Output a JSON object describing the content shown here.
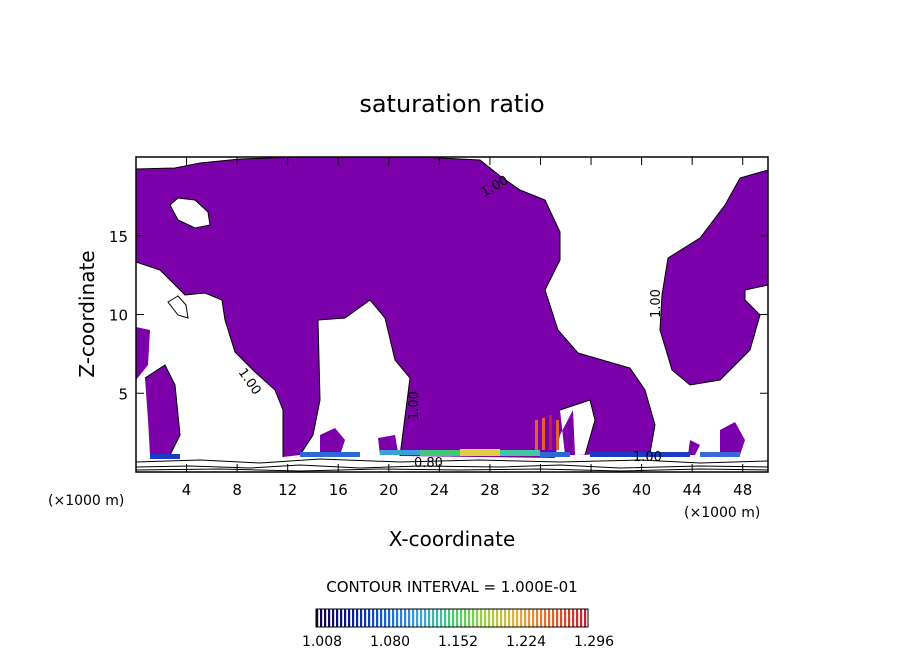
{
  "chart_data": {
    "type": "heatmap",
    "title": "saturation ratio",
    "xlabel": "X-coordinate",
    "ylabel": "Z-coordinate",
    "x_unit": "(×1000 m)",
    "z_unit": "(×1000 m)",
    "xlim": [
      0,
      50
    ],
    "ylim": [
      0,
      20
    ],
    "x_ticks": [
      4,
      8,
      12,
      16,
      20,
      24,
      28,
      32,
      36,
      40,
      44,
      48
    ],
    "y_ticks": [
      5,
      10,
      15
    ],
    "grid": false,
    "contour_interval_text": "CONTOUR INTERVAL = 1.000E-01",
    "contour_labels": [
      "1.00",
      "1.00",
      "1.00",
      "1.00",
      "0.80",
      "1.00"
    ],
    "colorbar": {
      "ticks": [
        "1.008",
        "1.080",
        "1.152",
        "1.224",
        "1.296"
      ],
      "colors": [
        "#1a0040",
        "#0a1a8c",
        "#1a5ad8",
        "#3aa0d8",
        "#40c878",
        "#a0d040",
        "#e0b040",
        "#e06030",
        "#c02030"
      ]
    },
    "fill_color": "#7b00a9"
  }
}
